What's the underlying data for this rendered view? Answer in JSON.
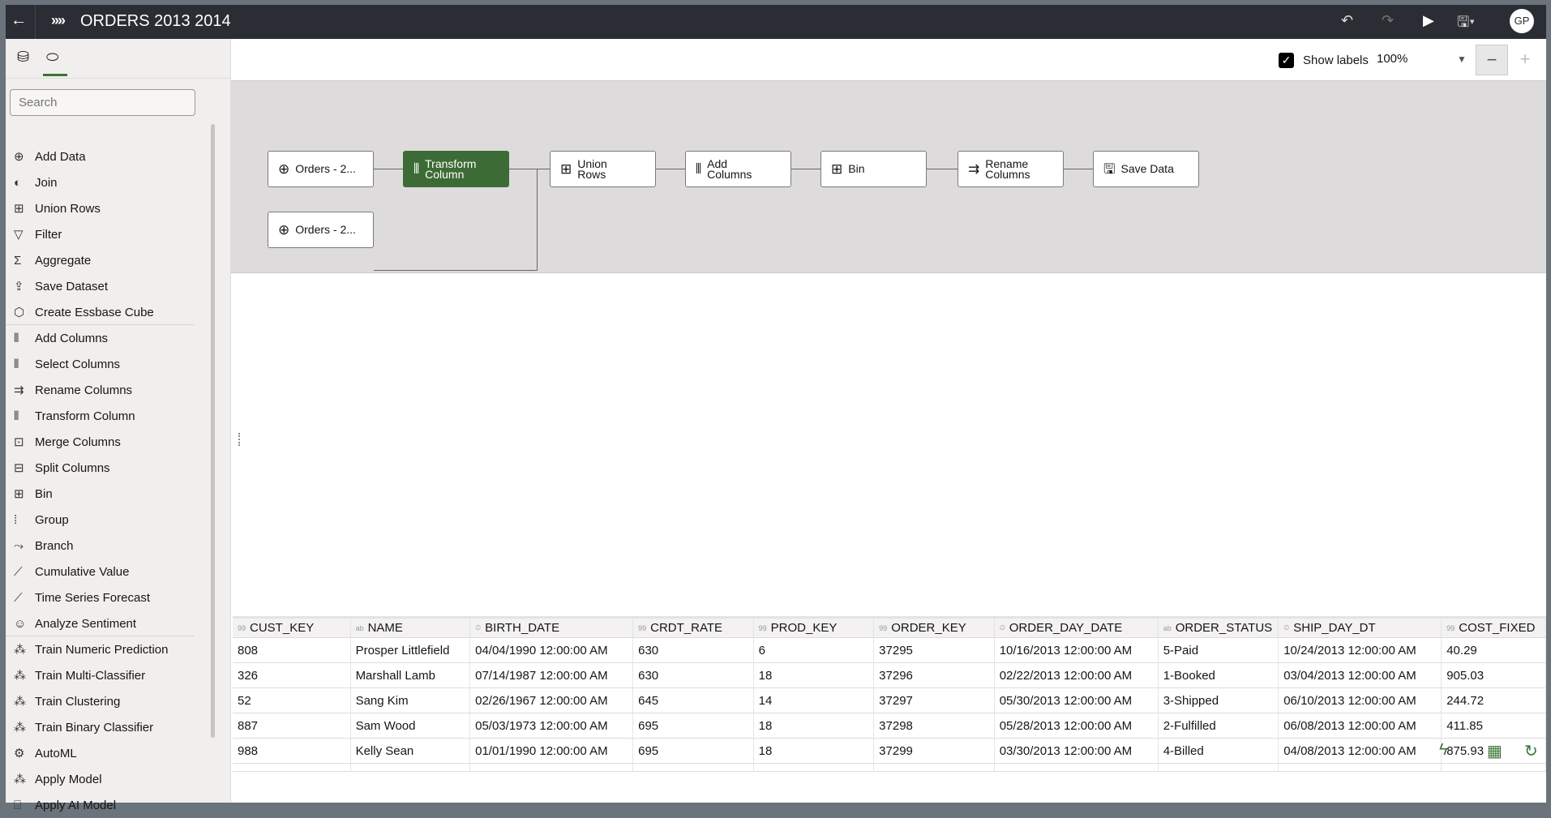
{
  "header": {
    "back_icon": "arrow-left-icon",
    "logo_icon": "dataflow-icon",
    "title": "ORDERS 2013 2014",
    "avatar": "GP",
    "icons": [
      "undo-icon",
      "redo-icon",
      "run-icon",
      "save-icon"
    ]
  },
  "sidebar": {
    "tabs": [
      "data-icon",
      "dataflow-steps-icon"
    ],
    "search_placeholder": "Search",
    "items": [
      {
        "label": "Add Data",
        "icon": "⊕"
      },
      {
        "label": "Join",
        "icon": "◐"
      },
      {
        "label": "Union Rows",
        "icon": "⊞"
      },
      {
        "label": "Filter",
        "icon": "▽"
      },
      {
        "label": "Aggregate",
        "icon": "Σ"
      },
      {
        "label": "Save Dataset",
        "icon": "⇪"
      },
      {
        "label": "Create Essbase Cube",
        "icon": "⬡"
      },
      {
        "label": "Add Columns",
        "icon": "⫴"
      },
      {
        "label": "Select Columns",
        "icon": "⫴"
      },
      {
        "label": "Rename Columns",
        "icon": "⇉"
      },
      {
        "label": "Transform Column",
        "icon": "⫴"
      },
      {
        "label": "Merge Columns",
        "icon": "⊡"
      },
      {
        "label": "Split Columns",
        "icon": "⊟"
      },
      {
        "label": "Bin",
        "icon": "⊞"
      },
      {
        "label": "Group",
        "icon": "⁞"
      },
      {
        "label": "Branch",
        "icon": "⤳"
      },
      {
        "label": "Cumulative Value",
        "icon": "⟋"
      },
      {
        "label": "Time Series Forecast",
        "icon": "⟋"
      },
      {
        "label": "Analyze Sentiment",
        "icon": "☺"
      },
      {
        "label": "Train Numeric Prediction",
        "icon": "⁂"
      },
      {
        "label": "Train Multi-Classifier",
        "icon": "⁂"
      },
      {
        "label": "Train Clustering",
        "icon": "⁂"
      },
      {
        "label": "Train Binary Classifier",
        "icon": "⁂"
      },
      {
        "label": "AutoML",
        "icon": "⚙"
      },
      {
        "label": "Apply Model",
        "icon": "⁂"
      },
      {
        "label": "Apply AI Model",
        "icon": "⌸"
      }
    ]
  },
  "toolbar": {
    "show_labels": "Show labels",
    "show_labels_checked": true,
    "zoom": "100%",
    "minus": "−",
    "plus": "+"
  },
  "flow": {
    "nodes": [
      {
        "l1": "Orders - 2...",
        "l2": "",
        "icon": "⊕"
      },
      {
        "l1": "Transform",
        "l2": "Column",
        "icon": "⫴"
      },
      {
        "l1": "Union",
        "l2": "Rows",
        "icon": "⊞"
      },
      {
        "l1": "Add",
        "l2": "Columns",
        "icon": "⫴"
      },
      {
        "l1": "Bin",
        "l2": "",
        "icon": "⊞"
      },
      {
        "l1": "Rename",
        "l2": "Columns",
        "icon": "⇉"
      },
      {
        "l1": "Save Data",
        "l2": "",
        "icon": "🖫"
      },
      {
        "l1": "Orders - 2...",
        "l2": "",
        "icon": "⊕"
      }
    ]
  },
  "table": {
    "columns": [
      {
        "name": "CUST_KEY",
        "type": "99"
      },
      {
        "name": "NAME",
        "type": "ab"
      },
      {
        "name": "BIRTH_DATE",
        "type": "⏲"
      },
      {
        "name": "CRDT_RATE",
        "type": "99"
      },
      {
        "name": "PROD_KEY",
        "type": "99"
      },
      {
        "name": "ORDER_KEY",
        "type": "99"
      },
      {
        "name": "ORDER_DAY_DATE",
        "type": "⏲"
      },
      {
        "name": "ORDER_STATUS",
        "type": "ab"
      },
      {
        "name": "SHIP_DAY_DT",
        "type": "⏲"
      },
      {
        "name": "COST_FIXED",
        "type": "99"
      }
    ],
    "rows": [
      [
        "808",
        "Prosper Littlefield",
        "04/04/1990 12:00:00 AM",
        "630",
        "6",
        "37295",
        "10/16/2013 12:00:00 AM",
        "5-Paid",
        "10/24/2013 12:00:00 AM",
        "40.29"
      ],
      [
        "326",
        "Marshall Lamb",
        "07/14/1987 12:00:00 AM",
        "630",
        "18",
        "37296",
        "02/22/2013 12:00:00 AM",
        "1-Booked",
        "03/04/2013 12:00:00 AM",
        "905.03"
      ],
      [
        "52",
        "Sang Kim",
        "02/26/1967 12:00:00 AM",
        "645",
        "14",
        "37297",
        "05/30/2013 12:00:00 AM",
        "3-Shipped",
        "06/10/2013 12:00:00 AM",
        "244.72"
      ],
      [
        "887",
        "Sam Wood",
        "05/03/1973 12:00:00 AM",
        "695",
        "18",
        "37298",
        "05/28/2013 12:00:00 AM",
        "2-Fulfilled",
        "06/08/2013 12:00:00 AM",
        "411.85"
      ],
      [
        "988",
        "Kelly Sean",
        "01/01/1990 12:00:00 AM",
        "695",
        "18",
        "37299",
        "03/30/2013 12:00:00 AM",
        "4-Billed",
        "04/08/2013 12:00:00 AM",
        "875.93"
      ]
    ]
  },
  "bottom_icons": [
    "quick-actions-icon",
    "table-view-icon",
    "refresh-icon"
  ]
}
